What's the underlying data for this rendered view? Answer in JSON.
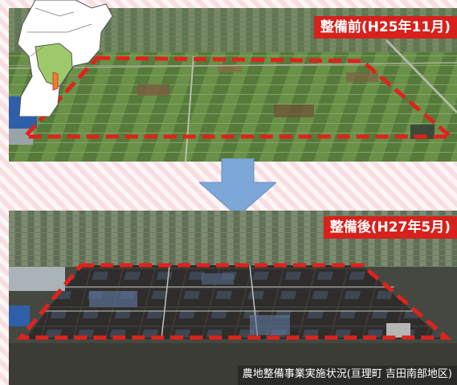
{
  "before": {
    "label": "整備前(H25年11月)"
  },
  "after": {
    "label": "整備後(H27年5月)",
    "caption": "農地整備事業実施状況(亘理町 吉田南部地区)"
  },
  "colors": {
    "label_red": "#d7211c",
    "dashed_outline": "#e0221c",
    "arrow_blue": "#7da7d6",
    "map_highlight": "#9ec96a",
    "background": "#fbe9ea"
  },
  "icons": {
    "arrow": "arrow-down-icon",
    "map": "prefecture-map-inset"
  }
}
